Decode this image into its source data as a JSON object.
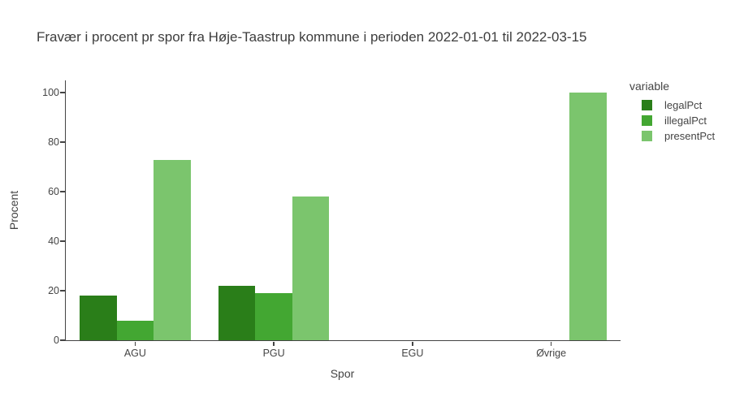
{
  "chart_data": {
    "type": "bar",
    "title": "Fravær i procent pr spor fra Høje-Taastrup kommune i perioden 2022-01-01 til 2022-03-15",
    "xlabel": "Spor",
    "ylabel": "Procent",
    "legend_title": "variable",
    "legend_position": "top-right",
    "grid": false,
    "categories": [
      "AGU",
      "PGU",
      "EGU",
      "Øvrige"
    ],
    "series": [
      {
        "name": "legalPct",
        "color": "#2a7e19",
        "values": [
          18,
          22,
          0,
          0
        ]
      },
      {
        "name": "illegalPct",
        "color": "#43a732",
        "values": [
          8,
          19,
          0,
          0
        ]
      },
      {
        "name": "presentPct",
        "color": "#7bc56d",
        "values": [
          73,
          58,
          0,
          100
        ]
      }
    ],
    "yticks": [
      0,
      20,
      40,
      60,
      80,
      100
    ],
    "ylim": [
      0,
      105
    ],
    "axis_color": "#444444",
    "background": "#ffffff"
  }
}
